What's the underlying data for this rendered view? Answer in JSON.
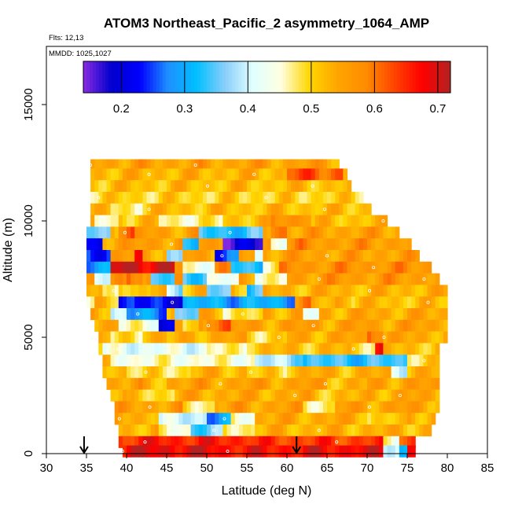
{
  "chart_data": {
    "type": "heatmap",
    "title": "ATOM3 Northeast_Pacific_2 asymmetry_1064_AMP",
    "flights_label": "Flts: 12,13",
    "dates_label": "MMDD: 1025,1027",
    "xlabel": "Latitude (deg N)",
    "ylabel": "Altitude (m)",
    "xlim": [
      30,
      85
    ],
    "ylim": [
      0,
      17500
    ],
    "x_ticks": [
      "30",
      "35",
      "40",
      "45",
      "50",
      "55",
      "60",
      "65",
      "70",
      "75",
      "80",
      "85"
    ],
    "y_ticks": [
      "0",
      "5000",
      "10000",
      "15000"
    ],
    "colorbar": {
      "range": [
        0.14,
        0.72
      ],
      "ticks": [
        "0.2",
        "0.3",
        "0.4",
        "0.5",
        "0.6",
        "0.7"
      ],
      "colors": [
        "#8a2be2",
        "#0000cd",
        "#0000ff",
        "#1e90ff",
        "#00bfff",
        "#87cefa",
        "#e0ffff",
        "#ffffe0",
        "#ffd700",
        "#ffa500",
        "#ff8c00",
        "#ff4500",
        "#ff0000",
        "#b22222"
      ]
    },
    "profile_arrows_latitude": [
      34.7,
      61.2
    ],
    "rows": [
      {
        "alt": 12400,
        "x0": 35.5,
        "x1": 66.5,
        "base": 0.55,
        "feat": []
      },
      {
        "alt": 12000,
        "x0": 35.5,
        "x1": 67.5,
        "base": 0.53,
        "feat": [
          [
            60,
            67,
            0.62
          ]
        ]
      },
      {
        "alt": 11500,
        "x0": 35.5,
        "x1": 68.0,
        "base": 0.52,
        "feat": []
      },
      {
        "alt": 11000,
        "x0": 35.5,
        "x1": 69.5,
        "base": 0.5,
        "feat": []
      },
      {
        "alt": 10500,
        "x0": 35.5,
        "x1": 70.5,
        "base": 0.52,
        "feat": [
          [
            38,
            42,
            0.48
          ]
        ]
      },
      {
        "alt": 10000,
        "x0": 35.5,
        "x1": 72.5,
        "base": 0.52,
        "feat": [
          [
            36,
            39,
            0.45
          ],
          [
            44,
            52,
            0.47
          ],
          [
            58,
            63,
            0.58
          ]
        ]
      },
      {
        "alt": 9500,
        "x0": 35.0,
        "x1": 74.0,
        "base": 0.55,
        "feat": [
          [
            35,
            38,
            0.35
          ],
          [
            39,
            41,
            0.62
          ],
          [
            49,
            57,
            0.33
          ],
          [
            58,
            60,
            0.6
          ]
        ]
      },
      {
        "alt": 9000,
        "x0": 35.0,
        "x1": 75.5,
        "base": 0.56,
        "feat": [
          [
            35,
            37,
            0.2
          ],
          [
            40,
            44,
            0.55
          ],
          [
            47,
            49,
            0.3
          ],
          [
            52,
            57,
            0.18
          ],
          [
            58,
            60,
            0.45
          ],
          [
            60,
            62,
            0.58
          ]
        ]
      },
      {
        "alt": 8500,
        "x0": 35.0,
        "x1": 76.5,
        "base": 0.55,
        "feat": [
          [
            35,
            38,
            0.25
          ],
          [
            41,
            42,
            0.66
          ],
          [
            45,
            47,
            0.35
          ],
          [
            51,
            54,
            0.25
          ],
          [
            56,
            57,
            0.4
          ]
        ]
      },
      {
        "alt": 8000,
        "x0": 35.0,
        "x1": 78.0,
        "base": 0.57,
        "feat": [
          [
            35,
            38,
            0.3
          ],
          [
            38,
            46,
            0.7
          ],
          [
            47,
            51,
            0.45
          ],
          [
            53,
            57,
            0.33
          ],
          [
            57,
            59,
            0.48
          ]
        ]
      },
      {
        "alt": 7500,
        "x0": 35.0,
        "x1": 79.0,
        "base": 0.56,
        "feat": [
          [
            36,
            38,
            0.4
          ],
          [
            40,
            42,
            0.62
          ],
          [
            43,
            46,
            0.33
          ],
          [
            47,
            50,
            0.35
          ],
          [
            50,
            54,
            0.42
          ],
          [
            56,
            60,
            0.45
          ]
        ]
      },
      {
        "alt": 7000,
        "x0": 35.0,
        "x1": 80.0,
        "base": 0.53,
        "feat": [
          [
            37,
            39,
            0.45
          ],
          [
            41,
            43,
            0.5
          ],
          [
            45,
            47,
            0.38
          ],
          [
            50,
            53,
            0.35
          ],
          [
            55,
            57,
            0.33
          ]
        ]
      },
      {
        "alt": 6500,
        "x0": 35.0,
        "x1": 80.0,
        "base": 0.52,
        "feat": [
          [
            35,
            36,
            0.45
          ],
          [
            39,
            41,
            0.24
          ],
          [
            41,
            47,
            0.22
          ],
          [
            47,
            54,
            0.3
          ],
          [
            54,
            61,
            0.3
          ],
          [
            61,
            63,
            0.58
          ],
          [
            66,
            68,
            0.55
          ]
        ]
      },
      {
        "alt": 6000,
        "x0": 35.5,
        "x1": 80.0,
        "base": 0.54,
        "feat": [
          [
            38,
            40,
            0.4
          ],
          [
            40,
            45,
            0.28
          ],
          [
            46,
            49,
            0.35
          ],
          [
            52,
            57,
            0.48
          ],
          [
            62,
            64,
            0.42
          ]
        ]
      },
      {
        "alt": 5500,
        "x0": 36.0,
        "x1": 80.0,
        "base": 0.55,
        "feat": [
          [
            39,
            44,
            0.45
          ],
          [
            44,
            46,
            0.2
          ],
          [
            47,
            49,
            0.48
          ],
          [
            50,
            53,
            0.62
          ],
          [
            53,
            58,
            0.55
          ]
        ]
      },
      {
        "alt": 5000,
        "x0": 36.5,
        "x1": 80.0,
        "base": 0.54,
        "feat": [
          [
            38,
            42,
            0.48
          ],
          [
            45,
            48,
            0.52
          ],
          [
            55,
            60,
            0.5
          ],
          [
            70,
            72,
            0.62
          ]
        ]
      },
      {
        "alt": 4500,
        "x0": 36.5,
        "x1": 79.0,
        "base": 0.52,
        "feat": [
          [
            37,
            50,
            0.42
          ],
          [
            50,
            55,
            0.46
          ],
          [
            68,
            72,
            0.5
          ],
          [
            71,
            72,
            0.66
          ]
        ]
      },
      {
        "alt": 4000,
        "x0": 37.0,
        "x1": 79.0,
        "base": 0.5,
        "feat": [
          [
            38,
            56,
            0.45
          ],
          [
            56,
            62,
            0.38
          ],
          [
            62,
            75,
            0.33
          ]
        ]
      },
      {
        "alt": 3500,
        "x0": 37.0,
        "x1": 79.0,
        "base": 0.53,
        "feat": [
          [
            40,
            48,
            0.49
          ],
          [
            55,
            60,
            0.5
          ],
          [
            73,
            75,
            0.42
          ]
        ]
      },
      {
        "alt": 3000,
        "x0": 37.5,
        "x1": 79.0,
        "base": 0.55,
        "feat": [
          [
            42,
            45,
            0.52
          ],
          [
            65,
            70,
            0.53
          ]
        ]
      },
      {
        "alt": 2500,
        "x0": 38.0,
        "x1": 79.0,
        "base": 0.54,
        "feat": [
          [
            40,
            46,
            0.5
          ],
          [
            63,
            70,
            0.52
          ]
        ]
      },
      {
        "alt": 2000,
        "x0": 38.5,
        "x1": 79.0,
        "base": 0.55,
        "feat": [
          [
            47,
            51,
            0.48
          ],
          [
            62,
            66,
            0.48
          ]
        ]
      },
      {
        "alt": 1500,
        "x0": 38.5,
        "x1": 78.5,
        "base": 0.54,
        "feat": [
          [
            44,
            50,
            0.4
          ],
          [
            50,
            53,
            0.28
          ],
          [
            53,
            56,
            0.45
          ],
          [
            70,
            75,
            0.5
          ]
        ]
      },
      {
        "alt": 1000,
        "x0": 39.0,
        "x1": 78.0,
        "base": 0.53,
        "feat": [
          [
            44,
            48,
            0.45
          ],
          [
            48,
            52,
            0.35
          ],
          [
            52,
            56,
            0.48
          ]
        ]
      },
      {
        "alt": 500,
        "x0": 39.0,
        "x1": 76.0,
        "base": 0.64,
        "feat": [
          [
            40,
            56,
            0.66
          ],
          [
            56,
            65,
            0.64
          ],
          [
            72,
            74,
            0.45
          ]
        ]
      },
      {
        "alt": 100,
        "x0": 39.5,
        "x1": 76.0,
        "base": 0.68,
        "feat": [
          [
            40,
            50,
            0.69
          ],
          [
            52,
            62,
            0.67
          ],
          [
            72,
            75,
            0.42
          ],
          [
            74,
            75,
            0.3
          ]
        ]
      }
    ]
  }
}
